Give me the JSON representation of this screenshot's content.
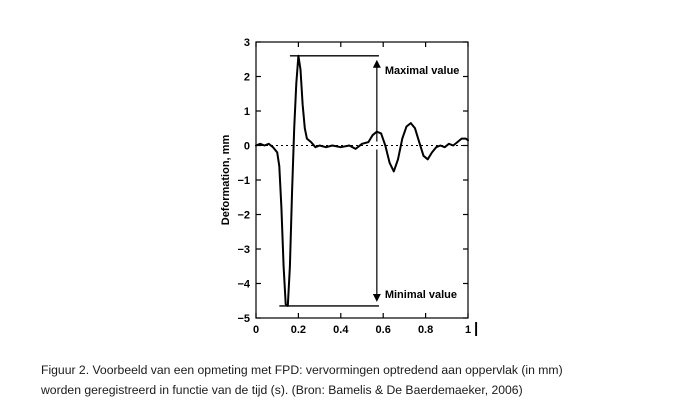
{
  "chart_data": {
    "type": "line",
    "title": "",
    "xlabel": "",
    "ylabel": "Deformation, mm",
    "xlim": [
      0,
      1
    ],
    "ylim": [
      -5,
      3
    ],
    "x_ticks": [
      "0",
      "0.2",
      "0.4",
      "0.6",
      "0.8",
      "1"
    ],
    "y_ticks": [
      "3",
      "2",
      "1",
      "0",
      "−1",
      "−2",
      "−3",
      "−4",
      "−5"
    ],
    "grid": false,
    "zero_line": "dotted",
    "series": [
      {
        "x": [
          0.0,
          0.02,
          0.04,
          0.06,
          0.08,
          0.1,
          0.11,
          0.12,
          0.13,
          0.14,
          0.15,
          0.16,
          0.17,
          0.18,
          0.19,
          0.2,
          0.21,
          0.22,
          0.23,
          0.24,
          0.26,
          0.28,
          0.3,
          0.33,
          0.36,
          0.4,
          0.44,
          0.47,
          0.5,
          0.53,
          0.55,
          0.57,
          0.59,
          0.61,
          0.63,
          0.65,
          0.67,
          0.69,
          0.71,
          0.73,
          0.75,
          0.77,
          0.79,
          0.81,
          0.83,
          0.85,
          0.87,
          0.89,
          0.91,
          0.93,
          0.95,
          0.97,
          0.99,
          1.0
        ],
        "y": [
          0.0,
          0.05,
          0.0,
          0.05,
          -0.05,
          -0.2,
          -0.6,
          -1.8,
          -3.5,
          -4.6,
          -4.65,
          -3.5,
          -1.4,
          0.5,
          1.8,
          2.6,
          2.2,
          1.2,
          0.5,
          0.2,
          0.1,
          -0.05,
          0.0,
          -0.05,
          0.0,
          -0.05,
          0.0,
          -0.1,
          0.05,
          0.1,
          0.3,
          0.4,
          0.35,
          0.0,
          -0.5,
          -0.75,
          -0.4,
          0.2,
          0.55,
          0.65,
          0.5,
          0.1,
          -0.3,
          -0.4,
          -0.2,
          -0.05,
          0.0,
          -0.05,
          0.05,
          0.0,
          0.1,
          0.2,
          0.2,
          0.15
        ]
      }
    ],
    "annotations": [
      {
        "text": "Maximal value",
        "y": 2.6
      },
      {
        "text": "Minimal value",
        "y": -4.65
      }
    ],
    "arrow_x": 0.57,
    "stray_mark": "|"
  },
  "caption": {
    "line1": "Figuur 2.  Voorbeeld van een opmeting met FPD: vervormingen optredend aan oppervlak (in mm)",
    "line2": "worden geregistreerd in functie van de tijd (s).  (Bron: Bamelis & De Baerdemaeker, 2006)"
  }
}
